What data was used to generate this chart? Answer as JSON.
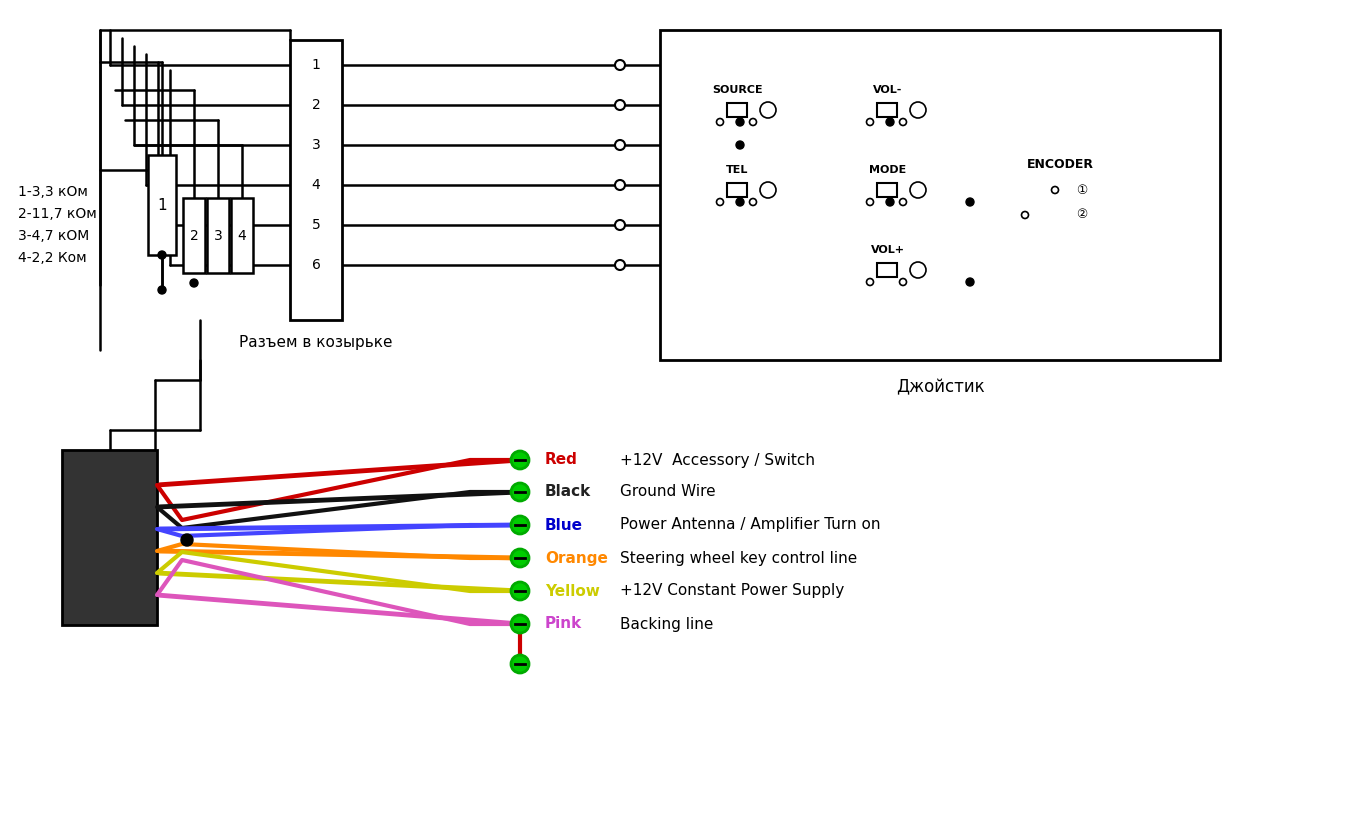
{
  "bg_color": "#ffffff",
  "line_color": "#000000",
  "resistor_labels": [
    "1",
    "2",
    "3",
    "4"
  ],
  "resistor_legend": [
    "1-3,3 кОм",
    "2-11,7 кОм",
    "3-4,7 кОМ",
    "4-2,2 Ком"
  ],
  "connector_pins": [
    "1",
    "2",
    "3",
    "4",
    "5",
    "6"
  ],
  "connector_label": "Разъем в козырьке",
  "joystick_label": "Джойстик",
  "joystick_buttons": [
    "SOURCE",
    "VOL-",
    "TEL",
    "MODE",
    "VOL+",
    "ENCODER"
  ],
  "wire_labels": [
    "Red",
    "Black",
    "Blue",
    "Orange",
    "Yellow",
    "Pink"
  ],
  "wire_colors": [
    "#cc0000",
    "#222222",
    "#0000cc",
    "#ff8800",
    "#cccc00",
    "#cc44cc"
  ],
  "wire_descriptions": [
    "+12V  Accessory / Switch",
    "Ground Wire",
    "Power Antenna / Amplifier Turn on",
    "Steering wheel key control line",
    "+12V Constant Power Supply",
    "Backing line"
  ],
  "desc_color": "#000000",
  "label_color_red": "#cc0000",
  "label_color_black": "#222222",
  "label_color_blue": "#0000cc",
  "label_color_orange": "#ff8800",
  "label_color_yellow": "#cccc00",
  "label_color_pink": "#cc44cc"
}
